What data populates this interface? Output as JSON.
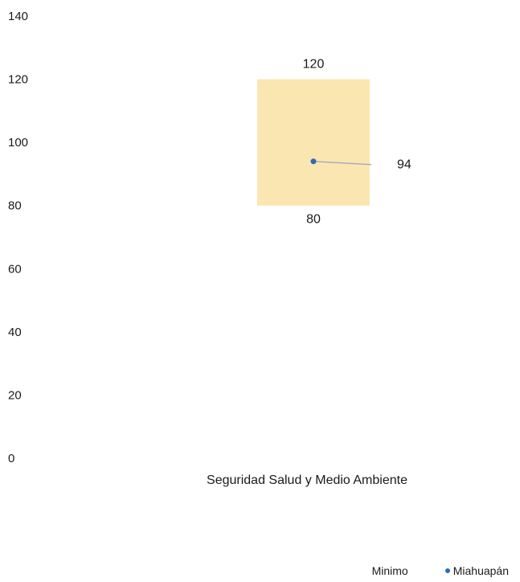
{
  "chart_data": {
    "type": "range-with-marker",
    "categories": [
      "Seguridad Salud y Medio Ambiente"
    ],
    "ylim": [
      0,
      140
    ],
    "yticks": [
      0,
      20,
      40,
      60,
      80,
      100,
      120,
      140
    ],
    "range": {
      "name": "Minimo",
      "low": [
        80
      ],
      "high": [
        120
      ],
      "color": "#fae6b1"
    },
    "marker": {
      "name": "Miahuapán",
      "values": [
        94
      ],
      "color": "#2b6cb5"
    },
    "grid": false,
    "legend_position": "bottom-right"
  },
  "legend": {
    "range_label": "Minimo",
    "marker_label": "Miahuapán"
  }
}
